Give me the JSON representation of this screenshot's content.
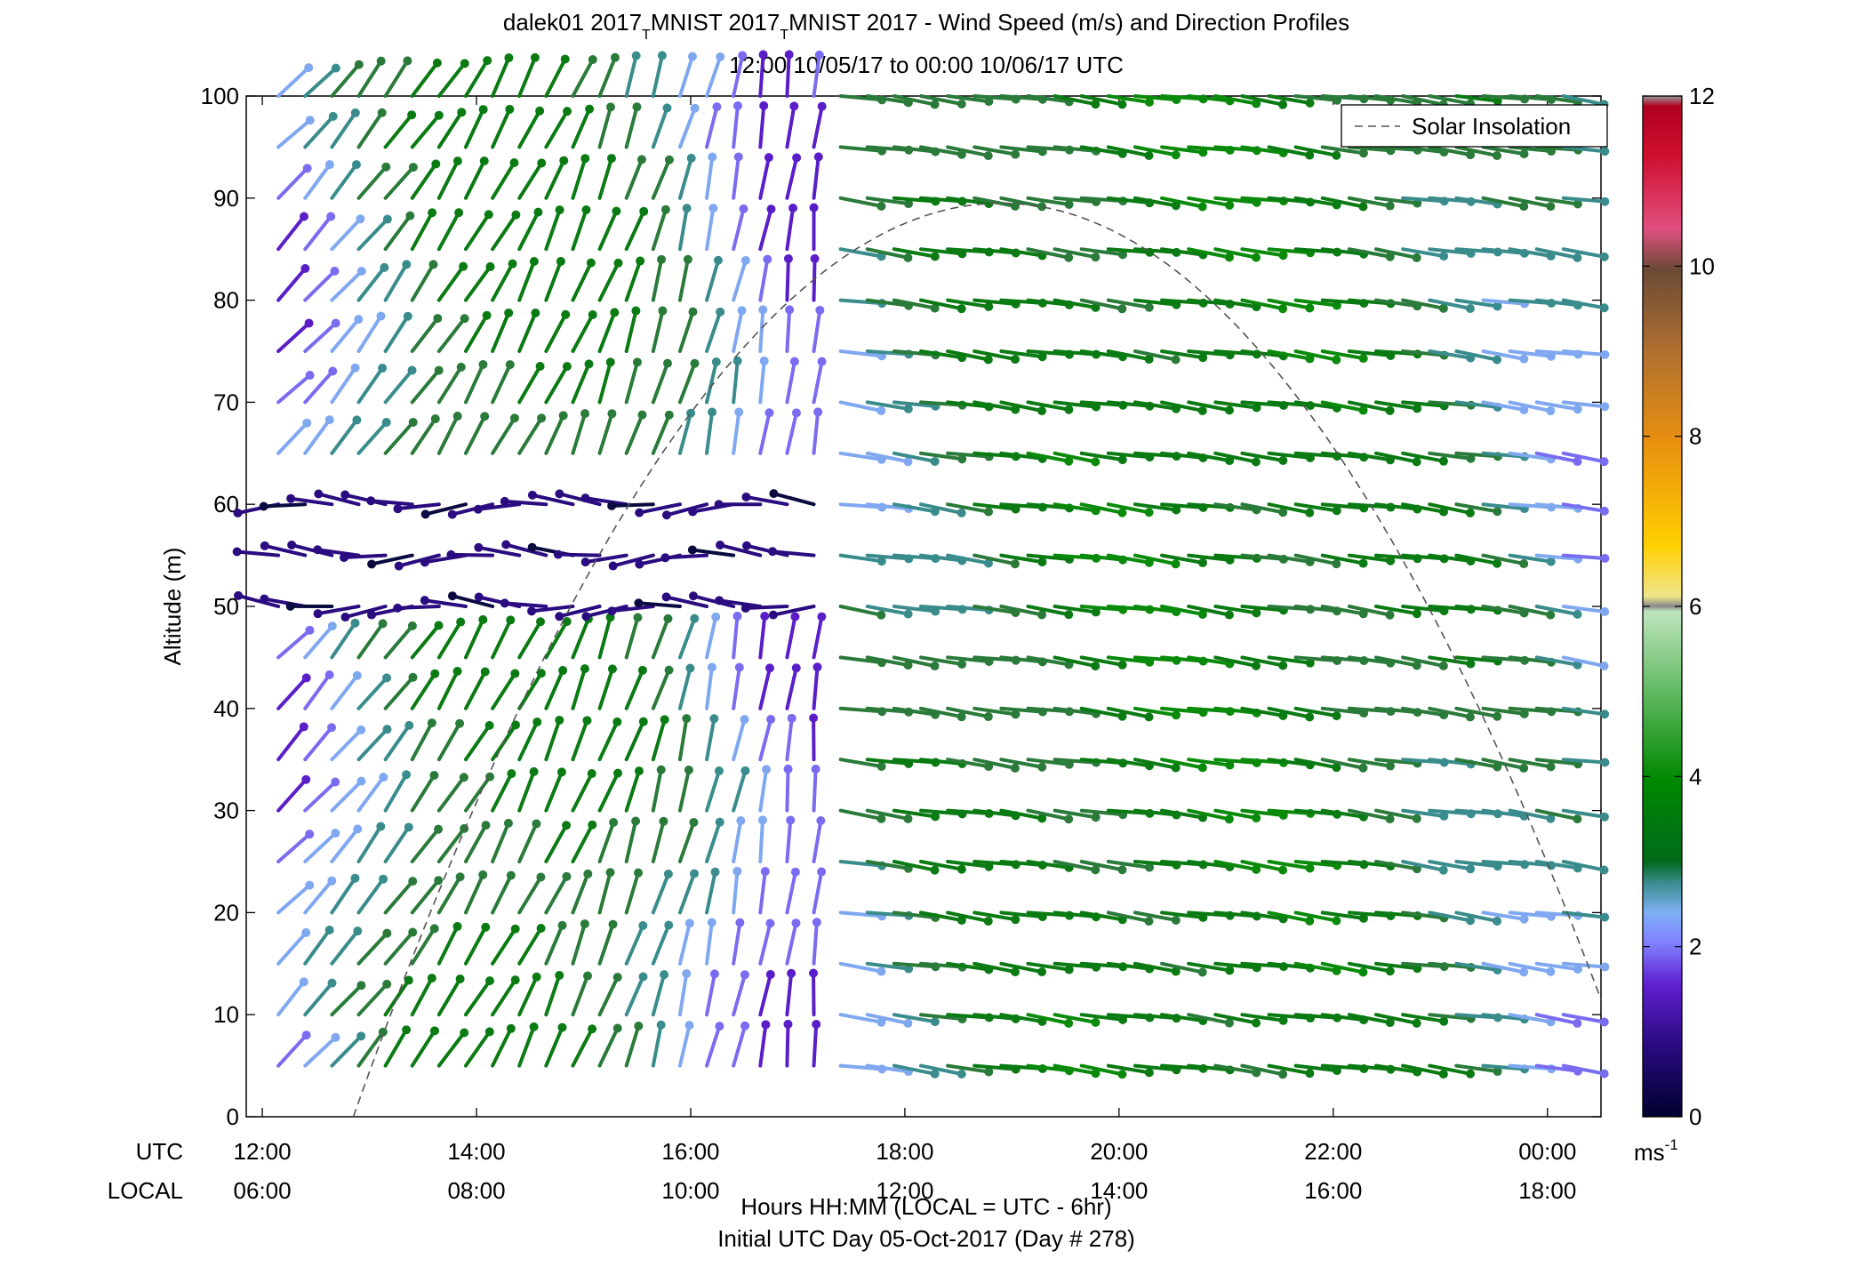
{
  "title_parts": {
    "p1": "dalek01 2017",
    "sub1": "T",
    "p2": "MNIST 2017",
    "sub2": "T",
    "p3": "MNIST 2017 - Wind Speed (m/s) and Direction Profiles"
  },
  "subtitle": "12:00 10/05/17 to 00:00 10/06/17  UTC",
  "legend_label": "Solar Insolation",
  "x_axis": {
    "utc_label": "UTC",
    "local_label": "LOCAL",
    "utc_ticks": [
      "12:00",
      "14:00",
      "16:00",
      "18:00",
      "20:00",
      "22:00",
      "00:00"
    ],
    "local_ticks": [
      "06:00",
      "08:00",
      "10:00",
      "12:00",
      "14:00",
      "16:00",
      "18:00"
    ],
    "xlabel": "Hours HH:MM  (LOCAL = UTC - 6hr)",
    "footer": "Initial UTC Day 05-Oct-2017 (Day # 278)"
  },
  "y_axis": {
    "ylabel": "Altitude (m)",
    "ticks": [
      "0",
      "10",
      "20",
      "30",
      "40",
      "50",
      "60",
      "70",
      "80",
      "90",
      "100"
    ]
  },
  "colorbar": {
    "ticks": [
      "0",
      "2",
      "4",
      "6",
      "8",
      "10",
      "12"
    ],
    "unit_base": "ms",
    "unit_exp": "-1",
    "range": [
      0,
      12
    ]
  },
  "chart_data": {
    "type": "wind barb profile",
    "x_range_hours": [
      11.85,
      24.5
    ],
    "y_range": [
      0,
      100
    ],
    "color_range": [
      0,
      12
    ],
    "time_step_hours": 0.25,
    "time_start_hours": 12.15,
    "time_end_hours": 24.15,
    "altitudes": [
      5,
      10,
      15,
      20,
      25,
      30,
      35,
      40,
      45,
      50,
      55,
      60,
      65,
      70,
      75,
      80,
      85,
      90,
      95,
      100
    ],
    "solar_insolation": {
      "line_style": "dashed",
      "start_hours": 12.85,
      "peak_hours": 18.9,
      "peak_altitude": 89.5,
      "end_hours": 24.5,
      "end_altitude": 11.5
    }
  }
}
